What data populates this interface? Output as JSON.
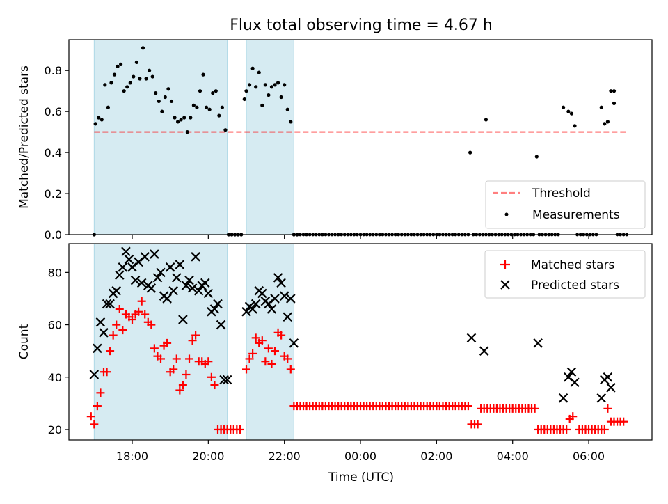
{
  "title": "Flux total observing time = 4.67 h",
  "colors": {
    "shade": "#add8e6",
    "threshold": "#ff0000",
    "measurements": "#000000",
    "matched": "#ff0000",
    "predicted": "#000000"
  },
  "chart_data": [
    {
      "type": "scatter",
      "ylabel": "Matched/Predicted stars",
      "ylim": [
        0,
        0.95
      ],
      "yticks": [
        "0.0",
        "0.2",
        "0.4",
        "0.6",
        "0.8"
      ],
      "threshold": 0.5,
      "threshold_x": [
        "17:00",
        "07:00"
      ],
      "legend": {
        "placement": "lower right",
        "entries": [
          "Threshold",
          "Measurements"
        ]
      },
      "shaded_intervals": [
        [
          "17:00",
          "20:30"
        ],
        [
          "21:00",
          "22:15"
        ]
      ],
      "series": [
        {
          "name": "Measurements",
          "x": [
            "17:00",
            "17:02",
            "17:07",
            "17:12",
            "17:17",
            "17:22",
            "17:27",
            "17:32",
            "17:37",
            "17:42",
            "17:47",
            "17:52",
            "17:57",
            "18:02",
            "18:07",
            "18:12",
            "18:17",
            "18:22",
            "18:27",
            "18:32",
            "18:37",
            "18:42",
            "18:47",
            "18:52",
            "18:57",
            "19:02",
            "19:07",
            "19:12",
            "19:17",
            "19:22",
            "19:27",
            "19:32",
            "19:37",
            "19:42",
            "19:47",
            "19:52",
            "19:57",
            "20:02",
            "20:07",
            "20:12",
            "20:17",
            "20:22",
            "20:27",
            "20:32",
            "20:37",
            "20:42",
            "20:47",
            "20:52",
            "20:57",
            "21:00",
            "21:05",
            "21:10",
            "21:15",
            "21:20",
            "21:25",
            "21:30",
            "21:35",
            "21:40",
            "21:45",
            "21:50",
            "21:55",
            "22:00",
            "22:05",
            "22:10",
            "22:15",
            "22:20",
            "06:40",
            "02:53",
            "03:18",
            "04:38",
            "05:20",
            "05:28",
            "05:33",
            "05:38",
            "06:20",
            "06:25",
            "06:30",
            "06:35",
            "06:40"
          ],
          "values": [
            0,
            0.54,
            0.57,
            0.56,
            0.73,
            0.62,
            0.74,
            0.78,
            0.82,
            0.83,
            0.7,
            0.72,
            0.74,
            0.77,
            0.84,
            0.76,
            0.91,
            0.76,
            0.8,
            0.77,
            0.69,
            0.65,
            0.6,
            0.67,
            0.71,
            0.65,
            0.57,
            0.55,
            0.56,
            0.57,
            0.5,
            0.57,
            0.63,
            0.62,
            0.7,
            0.78,
            0.62,
            0.61,
            0.69,
            0.7,
            0.58,
            0.62,
            0.51,
            0,
            0,
            0,
            0,
            0,
            0.66,
            0.7,
            0.73,
            0.81,
            0.72,
            0.79,
            0.63,
            0.73,
            0.68,
            0.72,
            0.73,
            0.74,
            0.67,
            0.73,
            0.61,
            0.55,
            0,
            0,
            0.7,
            0.4,
            0.56,
            0.38,
            0.62,
            0.6,
            0.59,
            0.53,
            0.62,
            0.54,
            0.55,
            0.7,
            0.64
          ]
        }
      ]
    },
    {
      "type": "scatter",
      "xlabel": "Time (UTC)",
      "ylabel": "Count",
      "ylim": [
        16,
        91
      ],
      "yticks": [
        "20",
        "40",
        "60",
        "80"
      ],
      "xticks": [
        "18:00",
        "20:00",
        "22:00",
        "00:00",
        "02:00",
        "04:00",
        "06:00"
      ],
      "legend": {
        "placement": "upper right",
        "entries": [
          "Matched stars",
          "Predicted stars"
        ]
      },
      "shaded_intervals": [
        [
          "17:00",
          "20:30"
        ],
        [
          "21:00",
          "22:15"
        ]
      ],
      "series": [
        {
          "name": "Matched stars",
          "x": [
            "16:55",
            "17:00",
            "17:05",
            "17:10",
            "17:15",
            "17:20",
            "17:25",
            "17:30",
            "17:35",
            "17:40",
            "17:45",
            "17:50",
            "17:55",
            "18:00",
            "18:05",
            "18:10",
            "18:15",
            "18:20",
            "18:25",
            "18:30",
            "18:35",
            "18:40",
            "18:45",
            "18:50",
            "18:55",
            "19:00",
            "19:05",
            "19:10",
            "19:15",
            "19:20",
            "19:25",
            "19:30",
            "19:35",
            "19:40",
            "19:45",
            "19:50",
            "19:55",
            "20:00",
            "20:05",
            "20:10",
            "20:15",
            "20:20",
            "20:25",
            "20:30",
            "20:35",
            "20:40",
            "20:45",
            "20:50",
            "21:00",
            "21:05",
            "21:10",
            "21:15",
            "21:20",
            "21:25",
            "21:30",
            "21:35",
            "21:40",
            "21:45",
            "21:50",
            "21:55",
            "22:00",
            "22:05",
            "22:10",
            "02:55",
            "03:00",
            "03:05",
            "05:30",
            "05:35",
            "06:30",
            "06:35"
          ],
          "values": [
            25,
            22,
            29,
            34,
            42,
            42,
            50,
            56,
            60,
            66,
            58,
            64,
            63,
            62,
            64,
            65,
            69,
            64,
            61,
            60,
            51,
            48,
            47,
            52,
            53,
            42,
            43,
            47,
            35,
            37,
            41,
            47,
            54,
            56,
            46,
            46,
            45,
            46,
            40,
            37,
            20,
            20,
            20,
            20,
            20,
            20,
            20,
            20,
            43,
            47,
            49,
            55,
            53,
            54,
            46,
            51,
            45,
            50,
            57,
            56,
            48,
            47,
            43,
            22,
            22,
            22,
            24,
            25,
            28,
            23
          ]
        },
        {
          "name": "Predicted stars",
          "x": [
            "17:00",
            "17:05",
            "17:10",
            "17:15",
            "17:20",
            "17:25",
            "17:30",
            "17:35",
            "17:40",
            "17:45",
            "17:50",
            "17:55",
            "18:00",
            "18:05",
            "18:10",
            "18:15",
            "18:20",
            "18:25",
            "18:30",
            "18:35",
            "18:40",
            "18:45",
            "18:50",
            "18:55",
            "19:00",
            "19:05",
            "19:10",
            "19:15",
            "19:20",
            "19:25",
            "19:30",
            "19:35",
            "19:40",
            "19:45",
            "19:50",
            "19:55",
            "20:00",
            "20:05",
            "20:10",
            "20:15",
            "20:20",
            "20:25",
            "20:30",
            "21:00",
            "21:05",
            "21:10",
            "21:15",
            "21:20",
            "21:25",
            "21:30",
            "21:35",
            "21:40",
            "21:45",
            "21:50",
            "21:55",
            "22:00",
            "22:05",
            "22:10",
            "22:15",
            "02:55",
            "03:15",
            "04:40",
            "05:20",
            "05:28",
            "05:33",
            "05:38",
            "06:20",
            "06:25",
            "06:30",
            "06:35"
          ],
          "values": [
            41,
            51,
            61,
            57,
            68,
            68,
            72,
            73,
            79,
            82,
            88,
            85,
            82,
            77,
            84,
            76,
            86,
            75,
            74,
            87,
            78,
            80,
            71,
            70,
            82,
            73,
            78,
            83,
            62,
            75,
            77,
            74,
            86,
            73,
            75,
            76,
            72,
            65,
            66,
            68,
            60,
            39,
            39,
            65,
            67,
            66,
            68,
            73,
            72,
            69,
            68,
            66,
            70,
            78,
            76,
            71,
            63,
            70,
            53,
            55,
            50,
            53,
            32,
            40,
            42,
            38,
            32,
            39,
            40,
            36
          ]
        }
      ]
    }
  ]
}
